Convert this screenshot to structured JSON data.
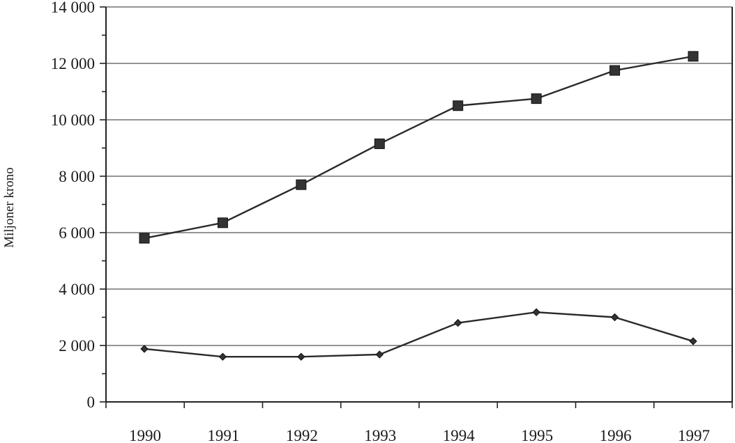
{
  "chart_data": {
    "type": "line",
    "title": "",
    "xlabel": "",
    "ylabel": "Miljoner krono",
    "categories": [
      "1990",
      "1991",
      "1992",
      "1993",
      "1994",
      "1995",
      "1996",
      "1997"
    ],
    "ylim": [
      0,
      14000
    ],
    "yticks": [
      0,
      2000,
      4000,
      6000,
      8000,
      10000,
      12000,
      14000
    ],
    "ytick_labels": [
      "0",
      "2 000",
      "4 000",
      "6 000",
      "8 000",
      "10 000",
      "12 000",
      "14 000"
    ],
    "grid": true,
    "legend": "none",
    "series": [
      {
        "marker": "square",
        "values": [
          5800,
          6350,
          7700,
          9150,
          10500,
          10750,
          11750,
          12250
        ]
      },
      {
        "marker": "diamond",
        "values": [
          1880,
          1600,
          1600,
          1680,
          2800,
          3180,
          3000,
          2150
        ]
      }
    ]
  }
}
